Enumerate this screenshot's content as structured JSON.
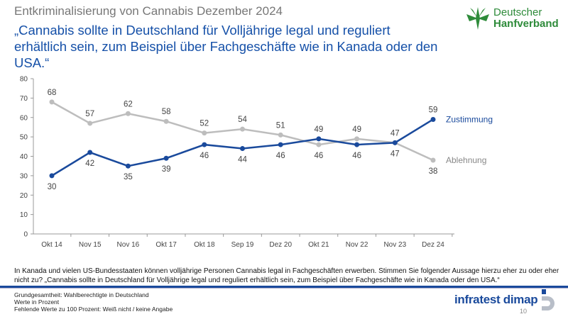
{
  "header": {
    "kicker": "Entkriminalisierung von Cannabis Dezember 2024",
    "title": "„Cannabis sollte in Deutschland für Volljährige legal und reguliert erhältlich sein, zum Beispiel über Fachgeschäfte wie in Kanada oder den USA.“",
    "logo": {
      "line1": "Deutscher",
      "line2": "Hanfverband"
    }
  },
  "chart_data": {
    "type": "line",
    "categories": [
      "Okt 14",
      "Nov 15",
      "Nov 16",
      "Okt 17",
      "Okt 18",
      "Sep 19",
      "Dez 20",
      "Okt 21",
      "Nov 22",
      "Nov 23",
      "Dez 24"
    ],
    "yticks": [
      0,
      10,
      20,
      30,
      40,
      50,
      60,
      70,
      80
    ],
    "ylim": [
      0,
      80
    ],
    "grid": false,
    "series": [
      {
        "name": "Zustimmung",
        "color": "#1a4a9c",
        "values": [
          30,
          42,
          35,
          39,
          46,
          44,
          46,
          49,
          46,
          47,
          59
        ]
      },
      {
        "name": "Ablehnung",
        "color": "#bdbdbd",
        "values": [
          68,
          57,
          62,
          58,
          52,
          54,
          51,
          46,
          49,
          47,
          38
        ]
      }
    ]
  },
  "footer": {
    "question": "In Kanada und vielen US-Bundesstaaten können volljährige Personen Cannabis legal in Fachgeschäften erwerben. Stimmen Sie folgender Aussage hierzu eher zu oder eher nicht zu? „Cannabis sollte in Deutschland für Volljährige legal und reguliert erhältlich sein, zum Beispiel über Fachgeschäfte wie in Kanada oder den USA.“",
    "notes": [
      "Grundgesamtheit: Wahlberechtigte in Deutschland",
      "Werte in Prozent",
      "Fehlende Werte zu 100 Prozent: Weiß nicht / keine Angabe"
    ],
    "brand": "infratest dimap",
    "page": "10"
  }
}
